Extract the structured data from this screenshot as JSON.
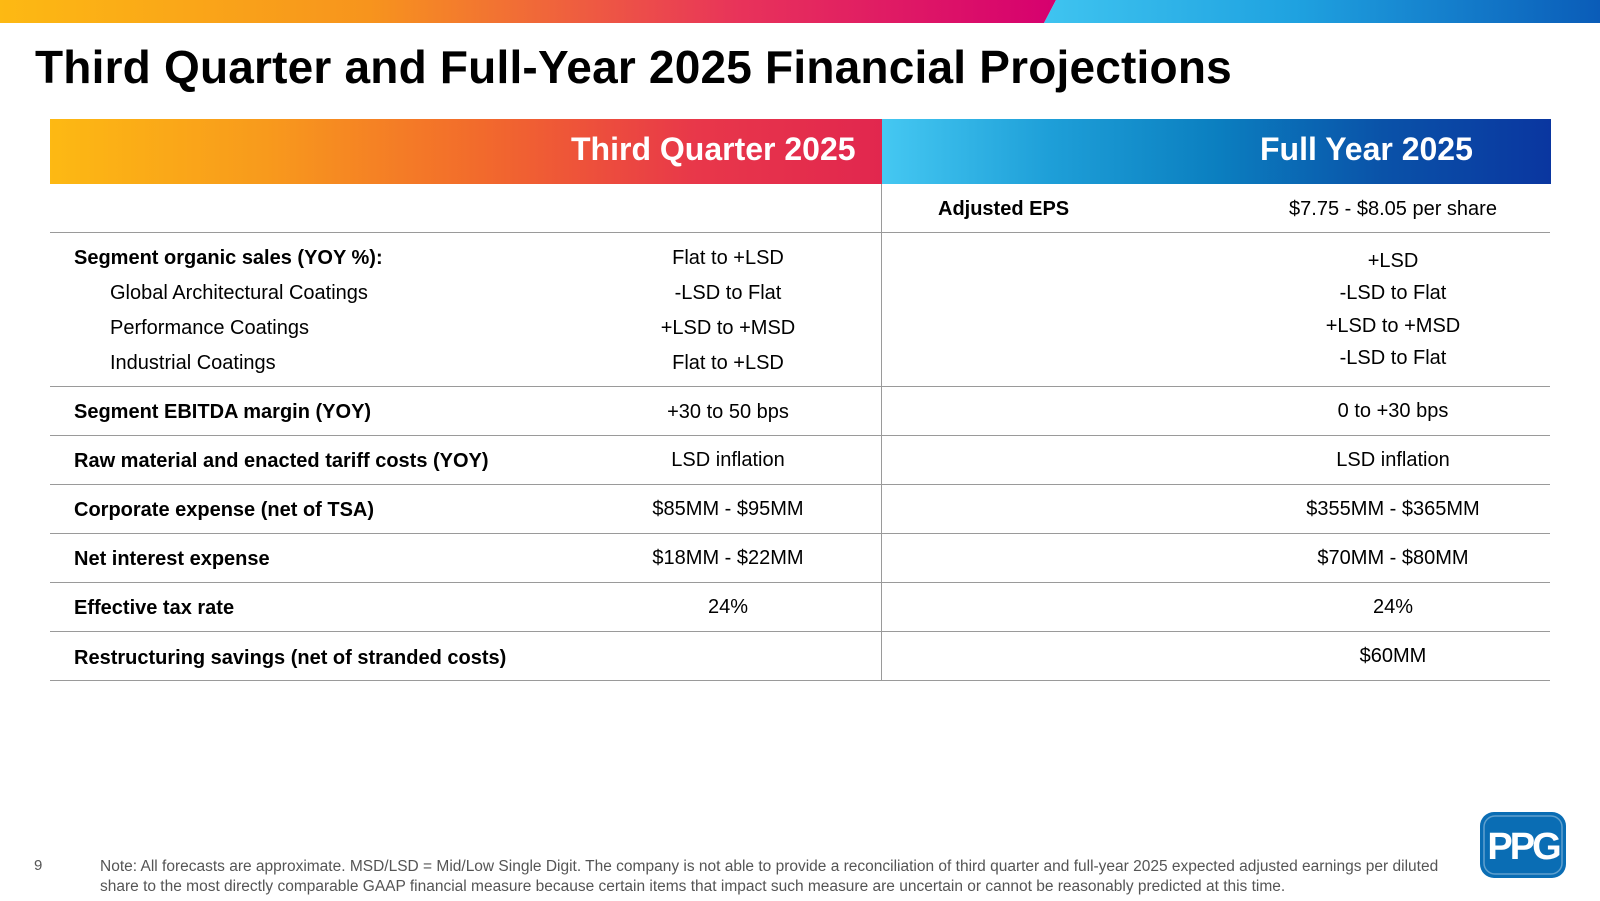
{
  "title": "Third Quarter and Full-Year 2025 Financial Projections",
  "columns": {
    "q3": "Third Quarter 2025",
    "fy": "Full Year 2025"
  },
  "eps": {
    "label": "Adjusted EPS",
    "value": "$7.75 - $8.05 per share"
  },
  "segment_sales": {
    "label": "Segment organic sales (YOY %):",
    "q3": "Flat to +LSD",
    "fy": "+LSD",
    "items": [
      {
        "label": "Global Architectural Coatings",
        "q3": "-LSD to Flat",
        "fy": "-LSD to Flat"
      },
      {
        "label": "Performance Coatings",
        "q3": "+LSD to +MSD",
        "fy": "+LSD to +MSD"
      },
      {
        "label": "Industrial Coatings",
        "q3": "Flat to +LSD",
        "fy": "-LSD to Flat"
      }
    ]
  },
  "rows": [
    {
      "label": "Segment EBITDA margin (YOY)",
      "q3": "+30 to 50 bps",
      "fy": "0 to +30 bps"
    },
    {
      "label": "Raw material and enacted tariff costs (YOY)",
      "q3": "LSD inflation",
      "fy": "LSD inflation"
    },
    {
      "label": "Corporate expense (net of TSA)",
      "q3": "$85MM - $95MM",
      "fy": "$355MM - $365MM"
    },
    {
      "label": "Net interest expense",
      "q3": "$18MM - $22MM",
      "fy": "$70MM - $80MM"
    },
    {
      "label": "Effective tax rate",
      "q3": "24%",
      "fy": "24%"
    },
    {
      "label": "Restructuring savings (net of stranded costs)",
      "q3": "",
      "fy": "$60MM"
    }
  ],
  "page_number": "9",
  "footnote": "Note: All forecasts are approximate. MSD/LSD =  Mid/Low Single Digit. The company is not able to provide a reconciliation of third quarter and full-year 2025 expected adjusted earnings per diluted share to the most directly comparable GAAP financial measure because certain items that impact such measure are uncertain or cannot be reasonably predicted at this time.",
  "logo": {
    "text": "PPG",
    "color": "#0a6db4"
  }
}
